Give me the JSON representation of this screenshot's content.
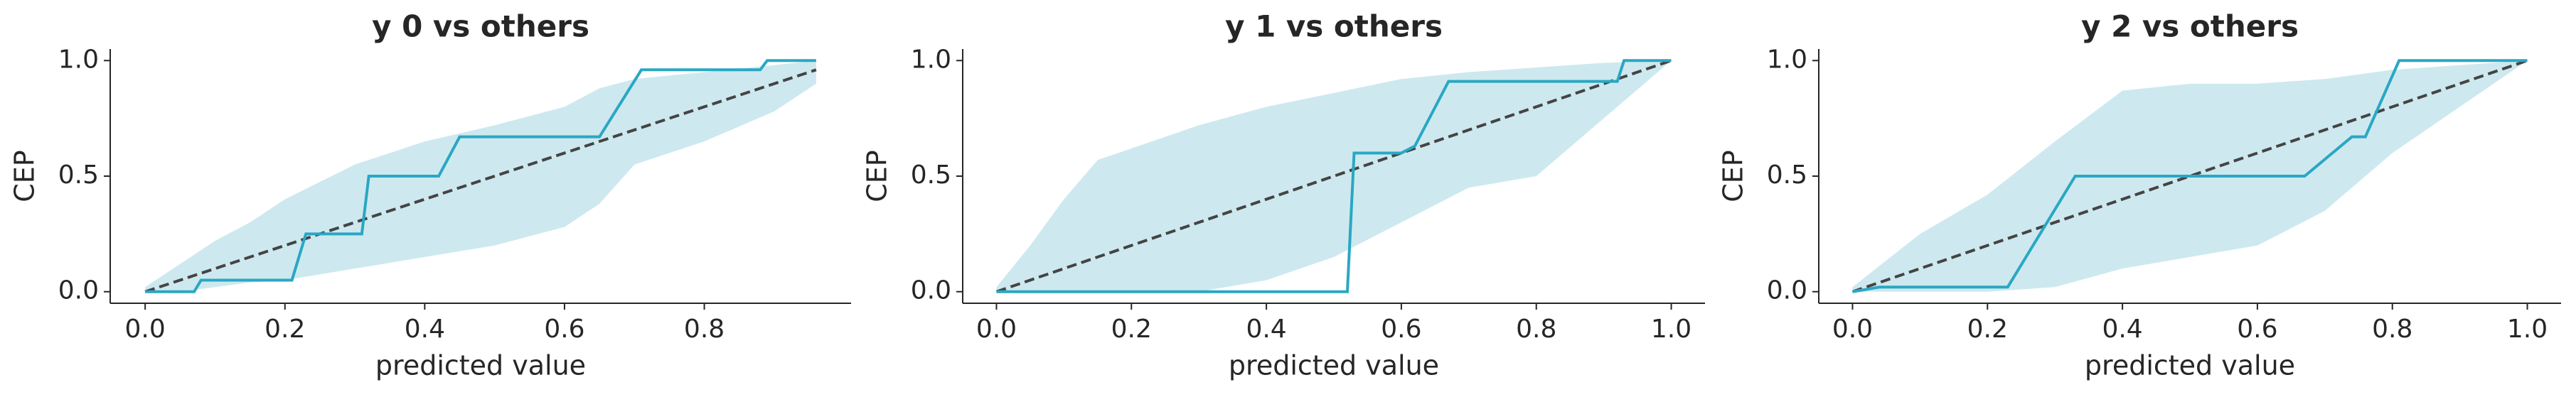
{
  "chart_data": [
    {
      "type": "line",
      "title": "y 0 vs others",
      "xlabel": "predicted value",
      "ylabel": "CEP",
      "xlim": [
        -0.05,
        1.01
      ],
      "ylim": [
        -0.05,
        1.05
      ],
      "xticks": [
        {
          "value": 0,
          "label": "0.0"
        },
        {
          "value": 0.2,
          "label": "0.2"
        },
        {
          "value": 0.4,
          "label": "0.4"
        },
        {
          "value": 0.6,
          "label": "0.6"
        },
        {
          "value": 0.8,
          "label": "0.8"
        }
      ],
      "yticks": [
        {
          "value": 0,
          "label": "0.0"
        },
        {
          "value": 0.5,
          "label": "0.5"
        },
        {
          "value": 1,
          "label": "1.0"
        }
      ],
      "band": {
        "color": "#cde9ef",
        "x": [
          0,
          0.05,
          0.1,
          0.15,
          0.2,
          0.3,
          0.4,
          0.5,
          0.6,
          0.65,
          0.7,
          0.8,
          0.9,
          0.96
        ],
        "upper": [
          0.02,
          0.12,
          0.22,
          0.3,
          0.4,
          0.55,
          0.65,
          0.72,
          0.8,
          0.88,
          0.92,
          0.95,
          0.98,
          1.0
        ],
        "lower": [
          0,
          0,
          0.02,
          0.04,
          0.05,
          0.1,
          0.15,
          0.2,
          0.28,
          0.38,
          0.55,
          0.65,
          0.78,
          0.9
        ]
      },
      "reference": {
        "color": "#444444",
        "x": [
          0,
          0.96
        ],
        "values": [
          0,
          0.96
        ]
      },
      "line": {
        "color": "#2aa7c4",
        "x": [
          0,
          0.07,
          0.08,
          0.21,
          0.23,
          0.31,
          0.32,
          0.42,
          0.45,
          0.65,
          0.71,
          0.88,
          0.89,
          0.96
        ],
        "values": [
          0,
          0,
          0.05,
          0.05,
          0.25,
          0.25,
          0.5,
          0.5,
          0.67,
          0.67,
          0.96,
          0.96,
          1,
          1
        ]
      }
    },
    {
      "type": "line",
      "title": "y 1 vs others",
      "xlabel": "predicted value",
      "ylabel": "CEP",
      "xlim": [
        -0.05,
        1.05
      ],
      "ylim": [
        -0.05,
        1.05
      ],
      "xticks": [
        {
          "value": 0,
          "label": "0.0"
        },
        {
          "value": 0.2,
          "label": "0.2"
        },
        {
          "value": 0.4,
          "label": "0.4"
        },
        {
          "value": 0.6,
          "label": "0.6"
        },
        {
          "value": 0.8,
          "label": "0.8"
        },
        {
          "value": 1,
          "label": "1.0"
        }
      ],
      "yticks": [
        {
          "value": 0,
          "label": "0.0"
        },
        {
          "value": 0.5,
          "label": "0.5"
        },
        {
          "value": 1,
          "label": "1.0"
        }
      ],
      "band": {
        "color": "#cde9ef",
        "x": [
          0,
          0.05,
          0.1,
          0.15,
          0.2,
          0.3,
          0.4,
          0.5,
          0.6,
          0.7,
          0.8,
          0.9,
          1.0
        ],
        "upper": [
          0.02,
          0.2,
          0.4,
          0.57,
          0.62,
          0.72,
          0.8,
          0.86,
          0.92,
          0.95,
          0.97,
          0.99,
          1
        ],
        "lower": [
          0,
          0,
          0,
          0,
          0,
          0,
          0.05,
          0.15,
          0.3,
          0.45,
          0.5,
          0.75,
          1
        ]
      },
      "reference": {
        "color": "#444444",
        "x": [
          0,
          1
        ],
        "values": [
          0,
          1
        ]
      },
      "line": {
        "color": "#2aa7c4",
        "x": [
          0,
          0.52,
          0.53,
          0.6,
          0.62,
          0.67,
          0.92,
          0.93,
          1.0
        ],
        "values": [
          0,
          0,
          0.6,
          0.6,
          0.63,
          0.91,
          0.91,
          1,
          1
        ]
      }
    },
    {
      "type": "line",
      "title": "y 2 vs others",
      "xlabel": "predicted value",
      "ylabel": "CEP",
      "xlim": [
        -0.05,
        1.05
      ],
      "ylim": [
        -0.05,
        1.05
      ],
      "xticks": [
        {
          "value": 0,
          "label": "0.0"
        },
        {
          "value": 0.2,
          "label": "0.2"
        },
        {
          "value": 0.4,
          "label": "0.4"
        },
        {
          "value": 0.6,
          "label": "0.6"
        },
        {
          "value": 0.8,
          "label": "0.8"
        },
        {
          "value": 1,
          "label": "1.0"
        }
      ],
      "yticks": [
        {
          "value": 0,
          "label": "0.0"
        },
        {
          "value": 0.5,
          "label": "0.5"
        },
        {
          "value": 1,
          "label": "1.0"
        }
      ],
      "band": {
        "color": "#cde9ef",
        "x": [
          0,
          0.1,
          0.2,
          0.3,
          0.4,
          0.5,
          0.6,
          0.7,
          0.8,
          0.9,
          1.0
        ],
        "upper": [
          0.02,
          0.25,
          0.42,
          0.65,
          0.87,
          0.9,
          0.9,
          0.92,
          0.96,
          0.98,
          1
        ],
        "lower": [
          0,
          0,
          0,
          0.02,
          0.1,
          0.15,
          0.2,
          0.35,
          0.6,
          0.8,
          1
        ]
      },
      "reference": {
        "color": "#444444",
        "x": [
          0,
          1
        ],
        "values": [
          0,
          1
        ]
      },
      "line": {
        "color": "#2aa7c4",
        "x": [
          0,
          0.04,
          0.23,
          0.33,
          0.67,
          0.74,
          0.76,
          0.81,
          1.0
        ],
        "values": [
          0,
          0.02,
          0.02,
          0.5,
          0.5,
          0.67,
          0.67,
          1,
          1
        ]
      }
    }
  ]
}
